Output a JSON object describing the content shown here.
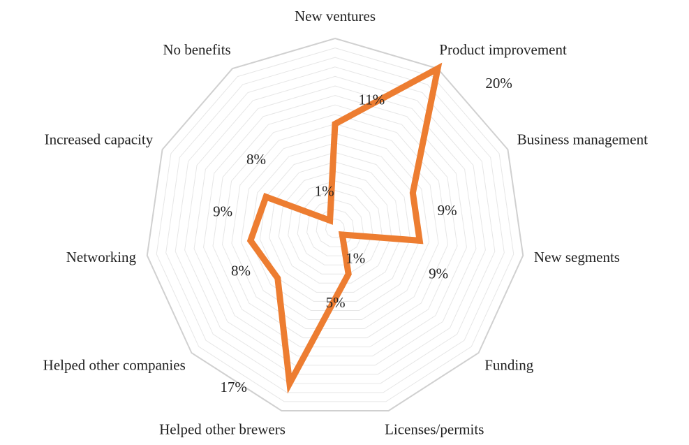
{
  "chart_data": {
    "type": "radar",
    "categories": [
      "New ventures",
      "Product improvement",
      "Business management",
      "New segments",
      "Funding",
      "Licenses/permits",
      "Helped other brewers",
      "Helped other companies",
      "Networking",
      "Increased capacity",
      "No benefits"
    ],
    "values": [
      11,
      20,
      9,
      9,
      1,
      5,
      17,
      8,
      9,
      8,
      1
    ],
    "value_labels": [
      "11%",
      "20%",
      "9%",
      "9%",
      "1%",
      "5%",
      "17%",
      "8%",
      "9%",
      "8%",
      "1%"
    ],
    "color": "#ed7d31",
    "ylim": [
      0,
      20
    ],
    "grid": true
  }
}
